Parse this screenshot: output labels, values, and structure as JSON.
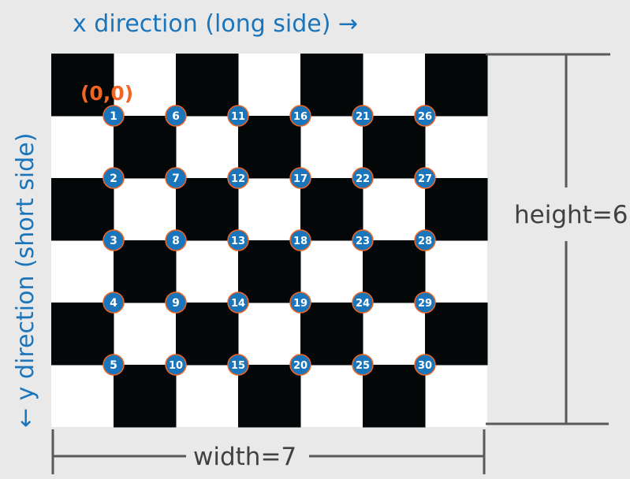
{
  "labels": {
    "x_direction": "x direction (long side) →",
    "y_direction": "← y direction (short side)",
    "origin": "(0,0)",
    "height": "height=6",
    "width": "width=7"
  },
  "board": {
    "columns": 7,
    "rows": 6,
    "top_left_square": "black"
  },
  "corners": {
    "numbering": "column-major",
    "columns": 6,
    "rows": 5,
    "numbers": [
      1,
      2,
      3,
      4,
      5,
      6,
      7,
      8,
      9,
      10,
      11,
      12,
      13,
      14,
      15,
      16,
      17,
      18,
      19,
      20,
      21,
      22,
      23,
      24,
      25,
      26,
      27,
      28,
      29,
      30
    ]
  },
  "colors": {
    "background": "#e9e9ea",
    "black_square": "#040708",
    "white_square": "#ffffff",
    "label_blue": "#1b75bb",
    "origin_orange": "#f26522",
    "marker_fill": "#1b75bb",
    "marker_border": "#f26522",
    "dimension_line": "#58595b",
    "dimension_text": "#414042"
  }
}
